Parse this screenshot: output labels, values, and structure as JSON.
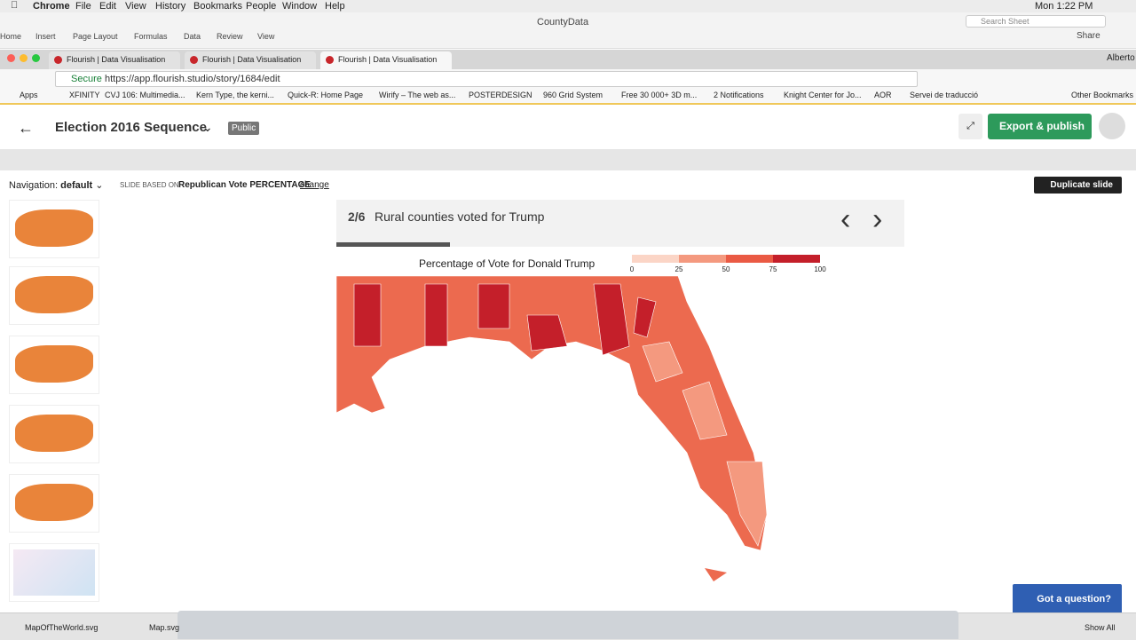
{
  "menubar": {
    "app": "Chrome",
    "items": [
      "File",
      "Edit",
      "View",
      "History",
      "Bookmarks",
      "People",
      "Window",
      "Help"
    ],
    "clock": "Mon 1:22 PM"
  },
  "excel": {
    "title": "CountyData",
    "search": "Search Sheet",
    "share": "Share",
    "tabs": [
      "Home",
      "Insert",
      "Page Layout",
      "Formulas",
      "Data",
      "Review",
      "View"
    ]
  },
  "browser": {
    "tabs": [
      "Flourish | Data Visualisation &",
      "Flourish | Data Visualisation &",
      "Flourish | Data Visualisation &"
    ],
    "user": "Alberto",
    "secure": "Secure",
    "url": "https://app.flourish.studio/story/1684/edit",
    "bookmarks": [
      "Apps",
      "XFINITY",
      "CVJ 106: Multimedia...",
      "Kern Type, the kerni...",
      "Quick-R: Home Page",
      "Wirify – The web as...",
      "POSTERDESIGN",
      "960 Grid System",
      "Free 30 000+ 3D m...",
      "2 Notifications",
      "Knight Center for Jo...",
      "AOR",
      "Servei de traducció"
    ],
    "other_bookmarks": "Other Bookmarks"
  },
  "app": {
    "title": "Election 2016 Sequence",
    "visibility": "Public",
    "export": "Export & publish",
    "navigation_label": "Navigation:",
    "navigation_value": "default",
    "slide_based_on": "SLIDE BASED ON:",
    "dataset": "Republican Vote PERCENTAGE",
    "change": "change",
    "duplicate": "Duplicate slide",
    "question": "Got a question?"
  },
  "slide": {
    "counter": "2/6",
    "caption": "Rural counties voted for Trump",
    "legend_title": "Percentage of Vote for Donald Trump",
    "legend_ticks": [
      "0",
      "25",
      "50",
      "75",
      "100"
    ]
  },
  "downloads": [
    "MapOfTheWorld.svg",
    "Map.svg"
  ],
  "show_all": "Show All"
}
